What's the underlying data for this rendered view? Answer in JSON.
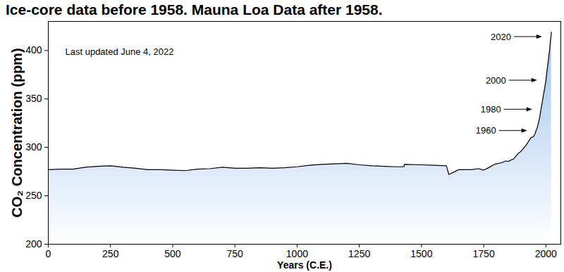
{
  "chart_data": {
    "type": "area",
    "title": "Ice-core data before 1958. Mauna Loa Data after 1958.",
    "x_label": "Years (C.E.)",
    "y_label": "CO₂ Concentration (ppm)",
    "color": "#9ec3ee",
    "x": [
      0,
      50,
      100,
      150,
      200,
      250,
      300,
      350,
      400,
      450,
      500,
      550,
      600,
      650,
      700,
      750,
      800,
      850,
      900,
      950,
      1000,
      1050,
      1100,
      1150,
      1200,
      1250,
      1300,
      1350,
      1400,
      1430,
      1431,
      1500,
      1550,
      1600,
      1610,
      1650,
      1700,
      1730,
      1750,
      1770,
      1790,
      1800,
      1820,
      1840,
      1850,
      1860,
      1870,
      1880,
      1890,
      1900,
      1910,
      1920,
      1930,
      1940,
      1950,
      1958,
      1960,
      1965,
      1970,
      1975,
      1980,
      1985,
      1990,
      1995,
      2000,
      2005,
      2010,
      2015,
      2020,
      2022
    ],
    "values": [
      277,
      277.5,
      277.5,
      279.5,
      280.5,
      281,
      279.5,
      278.5,
      277,
      277,
      276.5,
      276,
      277.5,
      278,
      279.5,
      278.5,
      278.5,
      279,
      278.5,
      279,
      280,
      281.5,
      282.5,
      283,
      283.5,
      282,
      281,
      280.5,
      280,
      280,
      282.5,
      282,
      281.5,
      281,
      272,
      277,
      277,
      278,
      276.5,
      279,
      282,
      283,
      284,
      286,
      285.5,
      287,
      288,
      291,
      294,
      296,
      299,
      302,
      306,
      310,
      311,
      315,
      317,
      320,
      325,
      331,
      339,
      346,
      354,
      361,
      369,
      380,
      390,
      401,
      414,
      419
    ],
    "xlim": [
      0,
      2060
    ],
    "xticks": [
      0,
      250,
      500,
      750,
      1000,
      1250,
      1500,
      1750,
      2000
    ],
    "ylim": [
      200,
      430
    ],
    "yticks": [
      200,
      250,
      300,
      350,
      400
    ],
    "grid": false,
    "annotations": [
      {
        "text": "Last updated June 4, 2022"
      },
      {
        "text": "2020",
        "x": 2020,
        "y": 414
      },
      {
        "text": "2000",
        "x": 2000,
        "y": 369
      },
      {
        "text": "1980",
        "x": 1980,
        "y": 339
      },
      {
        "text": "1960",
        "x": 1960,
        "y": 317
      }
    ]
  }
}
